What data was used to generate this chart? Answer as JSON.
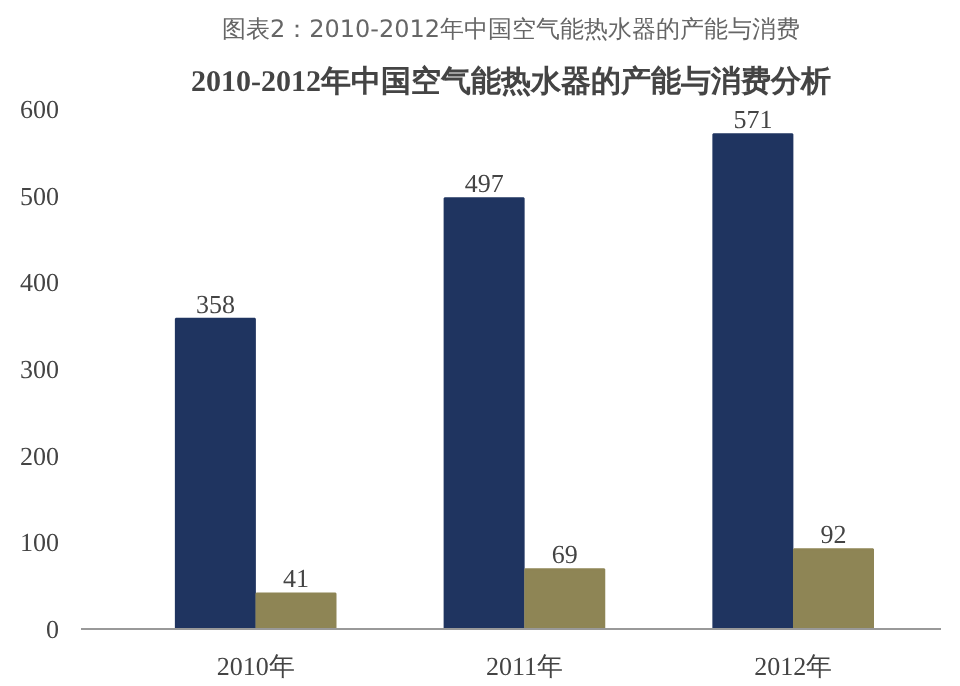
{
  "chart_data": {
    "type": "bar",
    "title": "2010-2012年中国空气能热水器的产能与消费分析",
    "annotations": [
      "图表2：2010-2012年中国空气能热水器的产能与消费"
    ],
    "categories": [
      "2010年",
      "2011年",
      "2012年"
    ],
    "series": [
      {
        "color": "#1f3460",
        "values": [
          358,
          497,
          571
        ]
      },
      {
        "color": "#8e8555",
        "values": [
          41,
          69,
          92
        ]
      }
    ],
    "ylim": [
      0,
      600
    ],
    "yticks": [
      0,
      100,
      200,
      300,
      400,
      500,
      600
    ],
    "grid": false,
    "data_labels": true
  }
}
